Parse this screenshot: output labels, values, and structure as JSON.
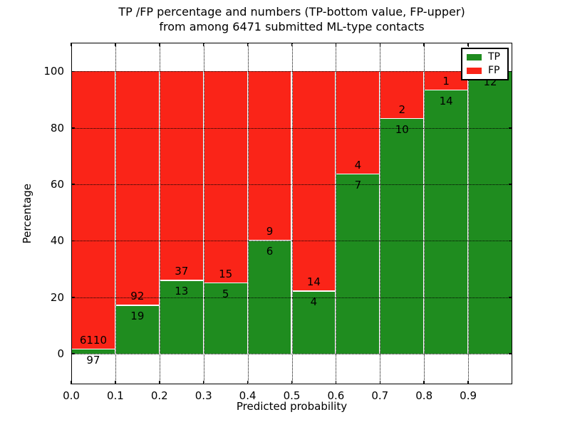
{
  "title": {
    "line1": "TP /FP percentage and numbers (TP-bottom value, FP-upper)",
    "line2": "from among 6471 submitted ML-type contacts"
  },
  "chart_data": {
    "type": "bar",
    "stacked": true,
    "normalized": "each bin scaled to 100%",
    "title": "TP /FP percentage and numbers (TP-bottom value, FP-upper) from among 6471 submitted ML-type contacts",
    "xlabel": "Predicted probability",
    "ylabel": "Percentage",
    "xlim": [
      0.0,
      1.0
    ],
    "ylim": [
      -10.8,
      110.2
    ],
    "grid": "dotted both axes",
    "bin_edges": [
      0.0,
      0.1,
      0.2,
      0.3,
      0.4,
      0.5,
      0.6,
      0.7,
      0.8,
      0.9,
      1.0
    ],
    "series": [
      {
        "name": "TP",
        "color": "#1f8c1f",
        "counts": [
          97,
          19,
          13,
          5,
          6,
          4,
          7,
          10,
          14,
          12
        ]
      },
      {
        "name": "FP",
        "color": "#fa2418",
        "counts": [
          6110,
          92,
          37,
          15,
          9,
          14,
          4,
          2,
          1,
          0
        ]
      }
    ],
    "tp_percent_approx": [
      1.6,
      17.1,
      26.0,
      25.0,
      40.0,
      22.2,
      63.6,
      83.3,
      93.3,
      100.0
    ],
    "xtick_vals": [
      0.0,
      0.1,
      0.2,
      0.3,
      0.4,
      0.5,
      0.6,
      0.7,
      0.8,
      0.9
    ],
    "xtick_labels": [
      "0.0",
      "0.1",
      "0.2",
      "0.3",
      "0.4",
      "0.5",
      "0.6",
      "0.7",
      "0.8",
      "0.9"
    ],
    "ytick_vals": [
      0,
      20,
      40,
      60,
      80,
      100
    ],
    "ytick_labels": [
      "0",
      "20",
      "40",
      "60",
      "80",
      "100"
    ],
    "legend": {
      "position": "upper right",
      "entries": [
        {
          "label": "TP",
          "color": "#1f8c1f"
        },
        {
          "label": "FP",
          "color": "#fa2418"
        }
      ]
    },
    "bar_edge_color": "#ffffff"
  }
}
